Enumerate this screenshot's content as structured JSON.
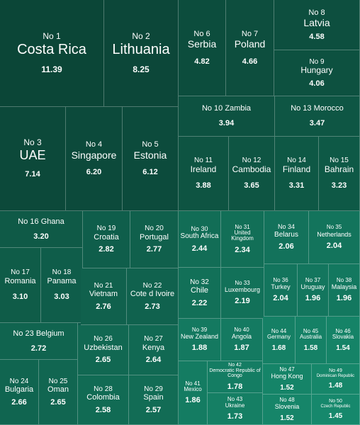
{
  "chart_data": {
    "type": "treemap",
    "items": [
      {
        "rank": "No 1",
        "country": "Costa Rica",
        "value": 11.39
      },
      {
        "rank": "No 2",
        "country": "Lithuania",
        "value": 8.25
      },
      {
        "rank": "No 3",
        "country": "UAE",
        "value": 7.14
      },
      {
        "rank": "No 4",
        "country": "Singapore",
        "value": 6.2
      },
      {
        "rank": "No 5",
        "country": "Estonia",
        "value": 6.12
      },
      {
        "rank": "No 6",
        "country": "Serbia",
        "value": 4.82
      },
      {
        "rank": "No 7",
        "country": "Poland",
        "value": 4.66
      },
      {
        "rank": "No 8",
        "country": "Latvia",
        "value": 4.58
      },
      {
        "rank": "No 9",
        "country": "Hungary",
        "value": 4.06
      },
      {
        "rank": "No 10",
        "country": "Zambia",
        "value": 3.94
      },
      {
        "rank": "No 11",
        "country": "Ireland",
        "value": 3.88
      },
      {
        "rank": "No 12",
        "country": "Cambodia",
        "value": 3.65
      },
      {
        "rank": "No 13",
        "country": "Morocco",
        "value": 3.47
      },
      {
        "rank": "No 14",
        "country": "Finland",
        "value": 3.31
      },
      {
        "rank": "No 15",
        "country": "Bahrain",
        "value": 3.23
      },
      {
        "rank": "No 16",
        "country": "Ghana",
        "value": 3.2
      },
      {
        "rank": "No 17",
        "country": "Romania",
        "value": 3.1
      },
      {
        "rank": "No 18",
        "country": "Panama",
        "value": 3.03
      },
      {
        "rank": "No 19",
        "country": "Croatia",
        "value": 2.82
      },
      {
        "rank": "No 20",
        "country": "Portugal",
        "value": 2.77
      },
      {
        "rank": "No 21",
        "country": "Vietnam",
        "value": 2.76
      },
      {
        "rank": "No 22",
        "country": "Cote d Ivoire",
        "value": 2.73
      },
      {
        "rank": "No 23",
        "country": "Belgium",
        "value": 2.72
      },
      {
        "rank": "No 24",
        "country": "Bulgaria",
        "value": 2.66
      },
      {
        "rank": "No 25",
        "country": "Oman",
        "value": 2.65
      },
      {
        "rank": "No 26",
        "country": "Uzbekistan",
        "value": 2.65
      },
      {
        "rank": "No 27",
        "country": "Kenya",
        "value": 2.64
      },
      {
        "rank": "No 28",
        "country": "Colombia",
        "value": 2.58
      },
      {
        "rank": "No 29",
        "country": "Spain",
        "value": 2.57
      },
      {
        "rank": "No 30",
        "country": "South Africa",
        "value": 2.44
      },
      {
        "rank": "No 31",
        "country": "United Kingdom",
        "value": 2.34
      },
      {
        "rank": "No 32",
        "country": "Chile",
        "value": 2.22
      },
      {
        "rank": "No 33",
        "country": "Luxembourg",
        "value": 2.19
      },
      {
        "rank": "No 34",
        "country": "Belarus",
        "value": 2.06
      },
      {
        "rank": "No 35",
        "country": "Netherlands",
        "value": 2.04
      },
      {
        "rank": "No 36",
        "country": "Turkey",
        "value": 2.04
      },
      {
        "rank": "No 37",
        "country": "Uruguay",
        "value": 1.96
      },
      {
        "rank": "No 38",
        "country": "Malaysia",
        "value": 1.96
      },
      {
        "rank": "No 39",
        "country": "New Zealand",
        "value": 1.88
      },
      {
        "rank": "No 40",
        "country": "Angola",
        "value": 1.87
      },
      {
        "rank": "No 41",
        "country": "Mexico",
        "value": 1.86
      },
      {
        "rank": "No 42",
        "country": "Democratic Republic of Congo",
        "value": 1.78
      },
      {
        "rank": "No 43",
        "country": "Ukraine",
        "value": 1.73
      },
      {
        "rank": "No 44",
        "country": "Germany",
        "value": 1.68
      },
      {
        "rank": "No 45",
        "country": "Australia",
        "value": 1.58
      },
      {
        "rank": "No 46",
        "country": "Slovakia",
        "value": 1.54
      },
      {
        "rank": "No 47",
        "country": "Hong Kong",
        "value": 1.52
      },
      {
        "rank": "No 48",
        "country": "Slovenia",
        "value": 1.52
      },
      {
        "rank": "No 49",
        "country": "Dominican Republic",
        "value": 1.48
      },
      {
        "rank": "No 50",
        "country": "Czech Republic",
        "value": 1.45
      }
    ]
  }
}
